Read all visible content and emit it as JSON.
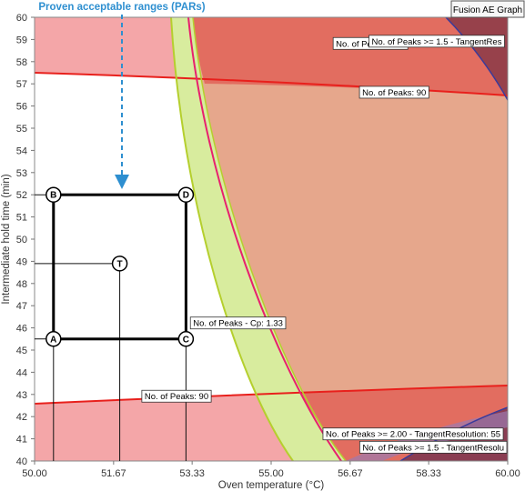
{
  "chart_data": {
    "type": "contour",
    "badge": "Fusion AE Graph",
    "xlabel": "Oven temperature (°C)",
    "ylabel": "Intermediate hold time (min)",
    "xlim": [
      50.0,
      60.0
    ],
    "ylim": [
      40,
      60
    ],
    "x_ticks": [
      {
        "value": 50.0,
        "label": "50.00"
      },
      {
        "value": 51.67,
        "label": "51.67"
      },
      {
        "value": 53.33,
        "label": "53.33"
      },
      {
        "value": 55.0,
        "label": "55.00"
      },
      {
        "value": 56.67,
        "label": "56.67"
      },
      {
        "value": 58.33,
        "label": "58.33"
      },
      {
        "value": 60.0,
        "label": "60.00"
      }
    ],
    "y_ticks": [
      40,
      41,
      42,
      43,
      44,
      45,
      46,
      47,
      48,
      49,
      50,
      51,
      52,
      53,
      54,
      55,
      56,
      57,
      58,
      59,
      60
    ],
    "annotation": "Proven acceptable ranges (PARs)",
    "par_box": {
      "x_min": 50.4,
      "x_max": 53.2,
      "y_min": 45.5,
      "y_max": 52
    },
    "points": [
      {
        "label": "A",
        "x": 50.4,
        "y": 45.5
      },
      {
        "label": "B",
        "x": 50.4,
        "y": 52
      },
      {
        "label": "C",
        "x": 53.2,
        "y": 45.5
      },
      {
        "label": "D",
        "x": 53.2,
        "y": 52
      },
      {
        "label": "T",
        "x": 51.8,
        "y": 48.9
      }
    ],
    "contour_labels": [
      {
        "text": "No. of Peaks >= 2",
        "x": 57.1,
        "y": 58.8
      },
      {
        "text": "No. of Peaks >= 1.5 - TangentRes",
        "x": 58.5,
        "y": 58.9
      },
      {
        "text": "No. of Peaks: 90",
        "x": 57.6,
        "y": 56.6
      },
      {
        "text": "No. of Peaks - Cp: 1.33",
        "x": 54.3,
        "y": 46.2
      },
      {
        "text": "No. of Peaks: 90",
        "x": 53.0,
        "y": 42.9
      },
      {
        "text": "No. of Peaks >= 2.00 - TangentResolution: 55",
        "x": 58.0,
        "y": 41.2
      },
      {
        "text": "No. of Peaks >= 1.5 - TangentResolu",
        "x": 58.6,
        "y": 40.6
      }
    ],
    "colors": {
      "failure_region": "#f4a6a8",
      "dark_region": "#e05a52",
      "large_region": "#e6a78c",
      "green_band": "#d8ec9e",
      "red_line": "#e8201c",
      "magenta_line": "#e8206e",
      "green_line": "#b5cf2e",
      "blue_line": "#3a3a9a",
      "annotation": "#2e8fd0"
    }
  }
}
